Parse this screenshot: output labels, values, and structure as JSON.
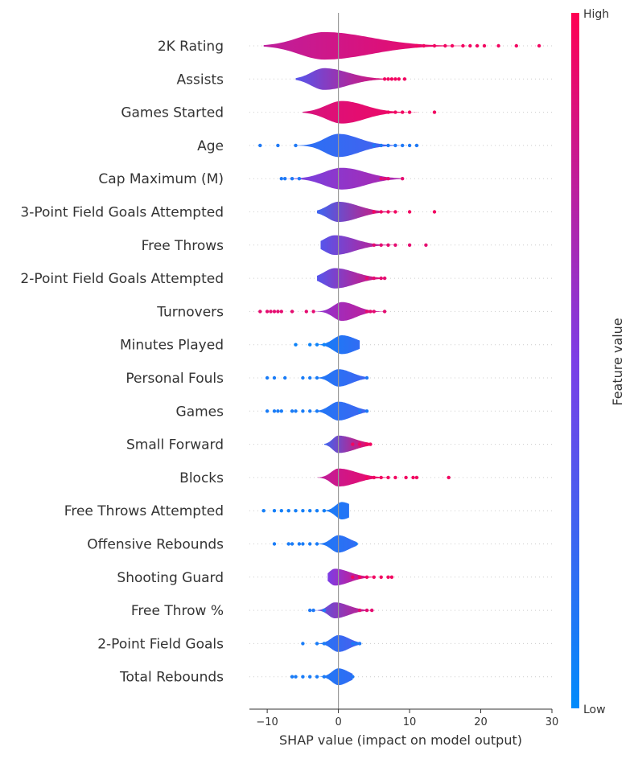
{
  "chart_data": {
    "type": "violin",
    "xlabel": "SHAP value (impact on model output)",
    "xlim": [
      -12.5,
      30
    ],
    "xticks": [
      -10,
      0,
      10,
      20,
      30
    ],
    "xtick_labels": [
      "−10",
      "0",
      "10",
      "20",
      "30"
    ],
    "colorbar": {
      "label": "Feature value",
      "high_label": "High",
      "low_label": "Low",
      "low_color": "#008bfb",
      "high_color": "#ff0052"
    },
    "features": [
      {
        "name": "2K Rating",
        "center": -2,
        "width": 0.95,
        "sd": 3.5,
        "tail_right": 6,
        "min": -10.5,
        "max": 28.5,
        "color_low": 0.75,
        "color_high": 0.95,
        "extra": [
          11,
          12,
          13.5,
          15,
          16,
          17.5,
          18.5,
          19.5,
          20.5,
          22.5,
          25,
          28.2
        ]
      },
      {
        "name": "Assists",
        "center": -2,
        "width": 0.75,
        "sd": 1.8,
        "tail_right": 3,
        "min": -6,
        "max": 9.5,
        "color_low": 0.35,
        "color_high": 0.95,
        "extra": [
          6.5,
          7,
          7.5,
          8,
          8.5,
          9.3
        ]
      },
      {
        "name": "Games Started",
        "center": 0.5,
        "width": 0.78,
        "sd": 2.2,
        "tail_right": 2,
        "min": -5,
        "max": 13.5,
        "color_low": 0.85,
        "color_high": 0.95,
        "extra": [
          7,
          8,
          9,
          10,
          13.5
        ]
      },
      {
        "name": "Age",
        "center": 0,
        "width": 0.8,
        "sd": 1.9,
        "tail_right": 2,
        "min": -11,
        "max": 11,
        "color_low": 0.15,
        "color_high": 0.3,
        "extra": [
          -11,
          -8.5,
          -6,
          5,
          6,
          7,
          8,
          9,
          10,
          11
        ]
      },
      {
        "name": "Cap Maximum (M)",
        "center": 0.5,
        "width": 0.75,
        "sd": 2.5,
        "tail_right": 1.5,
        "min": -8,
        "max": 9,
        "color_low": 0.45,
        "color_high": 0.7,
        "extra": [
          -8,
          -7.5,
          -6.5,
          -5.5,
          6,
          6.5,
          7,
          9
        ]
      },
      {
        "name": "3-Point Field Goals Attempted",
        "center": 0,
        "width": 0.7,
        "sd": 1.5,
        "tail_right": 2.5,
        "min": -3,
        "max": 13.5,
        "color_low": 0.25,
        "color_high": 0.95,
        "extra": [
          5,
          6,
          7,
          8,
          10,
          13.5
        ]
      },
      {
        "name": "Free Throws",
        "center": -0.5,
        "width": 0.68,
        "sd": 1.5,
        "tail_right": 2.5,
        "min": -2.5,
        "max": 12.5,
        "color_low": 0.35,
        "color_high": 0.85,
        "extra": [
          5,
          6,
          7,
          8,
          10,
          12.3
        ]
      },
      {
        "name": "2-Point Field Goals Attempted",
        "center": -0.5,
        "width": 0.7,
        "sd": 1.5,
        "tail_right": 2.5,
        "min": -3,
        "max": 6.5,
        "color_low": 0.35,
        "color_high": 0.9,
        "extra": [
          4,
          5,
          6,
          6.5
        ]
      },
      {
        "name": "Turnovers",
        "center": 0.5,
        "width": 0.65,
        "sd": 1.2,
        "tail_right": 1.5,
        "min": -11,
        "max": 6.5,
        "color_low": 0.55,
        "color_high": 0.8,
        "extra": [
          -11,
          -10,
          -9.5,
          -9,
          -8.5,
          -8,
          -6.5,
          -4.5,
          -3.5,
          4,
          4.5,
          5,
          6.5
        ]
      },
      {
        "name": "Minutes Played",
        "center": 0.5,
        "width": 0.65,
        "sd": 1.2,
        "tail_right": 1.5,
        "min": -6,
        "max": 3,
        "color_low": 0.05,
        "color_high": 0.2,
        "extra": [
          -6,
          -4,
          -3,
          -2
        ]
      },
      {
        "name": "Personal Fouls",
        "center": 0,
        "width": 0.6,
        "sd": 1.1,
        "tail_right": 1.5,
        "min": -10,
        "max": 4,
        "color_low": 0.1,
        "color_high": 0.25,
        "extra": [
          -10,
          -9,
          -7.5,
          -5,
          -4,
          -3,
          4
        ]
      },
      {
        "name": "Games",
        "center": 0,
        "width": 0.65,
        "sd": 1.2,
        "tail_right": 1.5,
        "min": -10,
        "max": 4,
        "color_low": 0.1,
        "color_high": 0.25,
        "extra": [
          -10,
          -9,
          -8.5,
          -8,
          -6.5,
          -6,
          -5,
          -4,
          -3,
          3,
          4
        ]
      },
      {
        "name": "Small Forward",
        "center": 0,
        "width": 0.6,
        "sd": 0.8,
        "tail_right": 3,
        "min": -2,
        "max": 4.5,
        "color_low": 0.25,
        "color_high": 0.95,
        "extra": [
          2,
          3,
          4,
          4.5
        ]
      },
      {
        "name": "Blocks",
        "center": 0,
        "width": 0.62,
        "sd": 1,
        "tail_right": 3,
        "min": -3,
        "max": 15.5,
        "color_low": 0.75,
        "color_high": 0.95,
        "extra": [
          4,
          5,
          6,
          7,
          8,
          9.5,
          10.5,
          11,
          15.5
        ]
      },
      {
        "name": "Free Throws Attempted",
        "center": 0.5,
        "width": 0.6,
        "sd": 0.9,
        "tail_right": 1,
        "min": -10.5,
        "max": 1.5,
        "color_low": 0.08,
        "color_high": 0.15,
        "extra": [
          -10.5,
          -9,
          -8,
          -7,
          -6,
          -5,
          -4,
          -3,
          -2
        ]
      },
      {
        "name": "Offensive Rebounds",
        "center": 0,
        "width": 0.6,
        "sd": 1,
        "tail_right": 1,
        "min": -9,
        "max": 2.5,
        "color_low": 0.1,
        "color_high": 0.2,
        "extra": [
          -9,
          -7,
          -6.5,
          -5.5,
          -5,
          -4,
          -3,
          2.5
        ]
      },
      {
        "name": "Shooting Guard",
        "center": -0.5,
        "width": 0.58,
        "sd": 0.8,
        "tail_right": 2.5,
        "min": -1.5,
        "max": 7.5,
        "color_low": 0.5,
        "color_high": 0.95,
        "extra": [
          2,
          3,
          4,
          5,
          6,
          7,
          7.5
        ]
      },
      {
        "name": "Free Throw %",
        "center": -0.5,
        "width": 0.55,
        "sd": 0.9,
        "tail_right": 2,
        "min": -4,
        "max": 5,
        "color_low": 0.3,
        "color_high": 0.85,
        "extra": [
          -4,
          -3.5,
          -2,
          3,
          4,
          4.7
        ]
      },
      {
        "name": "2-Point Field Goals",
        "center": 0,
        "width": 0.58,
        "sd": 1,
        "tail_right": 1,
        "min": -5,
        "max": 3,
        "color_low": 0.1,
        "color_high": 0.3,
        "extra": [
          -5,
          -3,
          -2,
          2,
          2.5,
          3
        ]
      },
      {
        "name": "Total Rebounds",
        "center": 0,
        "width": 0.58,
        "sd": 0.9,
        "tail_right": 1,
        "min": -6.5,
        "max": 2,
        "color_low": 0.1,
        "color_high": 0.2,
        "extra": [
          -6.5,
          -6,
          -5,
          -4,
          -3,
          -2,
          2
        ]
      }
    ]
  }
}
